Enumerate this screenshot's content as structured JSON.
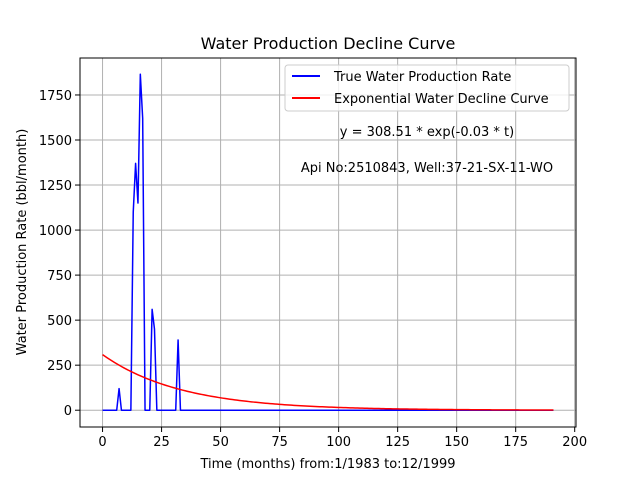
{
  "chart_data": {
    "type": "line",
    "title": "Water Production Decline Curve",
    "xlabel": "Time (months) from:1/1983 to:12/1999",
    "ylabel": "Water Production Rate (bbl/month)",
    "xlim": [
      -9.55,
      200.55
    ],
    "ylim": [
      -93.2,
      1955.2
    ],
    "x_ticks": [
      0,
      25,
      50,
      75,
      100,
      125,
      150,
      175,
      200
    ],
    "y_ticks": [
      0,
      250,
      500,
      750,
      1000,
      1250,
      1500,
      1750
    ],
    "x_tick_labels": [
      "0",
      "25",
      "50",
      "75",
      "100",
      "125",
      "150",
      "175",
      "200"
    ],
    "y_tick_labels": [
      "0",
      "250",
      "500",
      "750",
      "1000",
      "1250",
      "1500",
      "1750"
    ],
    "grid": true,
    "legend_position": "top-right",
    "series": [
      {
        "name": "True Water Production Rate",
        "color": "#0000ff",
        "style": "line",
        "points": [
          [
            0,
            0
          ],
          [
            6,
            0
          ],
          [
            7,
            120
          ],
          [
            8,
            0
          ],
          [
            12,
            0
          ],
          [
            13,
            1100
          ],
          [
            14,
            1370
          ],
          [
            15,
            1150
          ],
          [
            16,
            1865
          ],
          [
            17,
            1620
          ],
          [
            18,
            0
          ],
          [
            20,
            0
          ],
          [
            21,
            560
          ],
          [
            22,
            450
          ],
          [
            23,
            0
          ],
          [
            31,
            0
          ],
          [
            32,
            390
          ],
          [
            33,
            0
          ],
          [
            191,
            0
          ]
        ]
      },
      {
        "name": "Exponential Water Decline Curve",
        "color": "#ff0000",
        "style": "exponential",
        "a": 308.51,
        "b": -0.03,
        "x_start": 0,
        "x_end": 191
      }
    ],
    "annotations": [
      "y = 308.51 * exp(-0.03 * t)",
      "Api No:2510843, Well:37-21-SX-11-WO"
    ]
  }
}
